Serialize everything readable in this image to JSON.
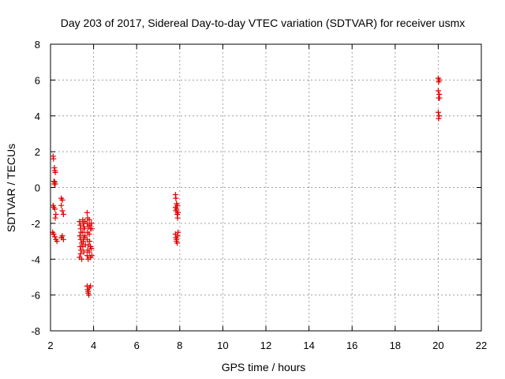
{
  "chart_data": {
    "type": "scatter",
    "title": "Day 203 of 2017, Sidereal Day-to-day VTEC variation (SDTVAR) for receiver usmx",
    "xlabel": "GPS time / hours",
    "ylabel": "SDTVAR / TECUs",
    "xlim": [
      2,
      22
    ],
    "ylim": [
      -8,
      8
    ],
    "xticks": [
      2,
      4,
      6,
      8,
      10,
      12,
      14,
      16,
      18,
      20,
      22
    ],
    "yticks": [
      -8,
      -6,
      -4,
      -2,
      0,
      2,
      4,
      6,
      8
    ],
    "grid": true,
    "marker": "plus",
    "color": "#e00000",
    "series": [
      {
        "name": "SDTVAR",
        "points": [
          [
            2.12,
            1.75
          ],
          [
            2.14,
            1.6
          ],
          [
            2.18,
            1.1
          ],
          [
            2.2,
            0.95
          ],
          [
            2.22,
            0.85
          ],
          [
            2.16,
            0.35
          ],
          [
            2.18,
            0.2
          ],
          [
            2.2,
            0.3
          ],
          [
            2.22,
            0.2
          ],
          [
            2.12,
            -1.0
          ],
          [
            2.15,
            -1.1
          ],
          [
            2.2,
            -1.2
          ],
          [
            2.25,
            -1.5
          ],
          [
            2.22,
            -1.7
          ],
          [
            2.1,
            -2.5
          ],
          [
            2.15,
            -2.6
          ],
          [
            2.2,
            -2.75
          ],
          [
            2.25,
            -2.9
          ],
          [
            2.3,
            -3.0
          ],
          [
            2.5,
            -0.6
          ],
          [
            2.55,
            -0.7
          ],
          [
            2.5,
            -1.0
          ],
          [
            2.55,
            -1.3
          ],
          [
            2.6,
            -1.5
          ],
          [
            2.5,
            -2.8
          ],
          [
            2.55,
            -2.7
          ],
          [
            2.6,
            -2.9
          ],
          [
            3.35,
            -1.9
          ],
          [
            3.38,
            -2.1
          ],
          [
            3.4,
            -2.3
          ],
          [
            3.42,
            -2.5
          ],
          [
            3.36,
            -2.7
          ],
          [
            3.4,
            -2.9
          ],
          [
            3.45,
            -3.1
          ],
          [
            3.38,
            -3.3
          ],
          [
            3.42,
            -3.5
          ],
          [
            3.4,
            -3.7
          ],
          [
            3.35,
            -3.9
          ],
          [
            3.45,
            -4.0
          ],
          [
            3.5,
            -1.8
          ],
          [
            3.52,
            -2.0
          ],
          [
            3.55,
            -2.2
          ],
          [
            3.5,
            -2.5
          ],
          [
            3.55,
            -2.8
          ],
          [
            3.52,
            -3.0
          ],
          [
            3.5,
            -3.3
          ],
          [
            3.55,
            -3.6
          ],
          [
            3.6,
            -1.9
          ],
          [
            3.58,
            -2.3
          ],
          [
            3.6,
            -2.7
          ],
          [
            3.62,
            -3.2
          ],
          [
            3.7,
            -1.4
          ],
          [
            3.72,
            -1.7
          ],
          [
            3.7,
            -2.0
          ],
          [
            3.75,
            -2.2
          ],
          [
            3.72,
            -2.5
          ],
          [
            3.7,
            -2.9
          ],
          [
            3.75,
            -3.2
          ],
          [
            3.72,
            -3.5
          ],
          [
            3.7,
            -3.8
          ],
          [
            3.75,
            -4.0
          ],
          [
            3.8,
            -1.8
          ],
          [
            3.82,
            -2.1
          ],
          [
            3.85,
            -2.3
          ],
          [
            3.8,
            -2.6
          ],
          [
            3.82,
            -3.0
          ],
          [
            3.85,
            -3.3
          ],
          [
            3.8,
            -3.6
          ],
          [
            3.85,
            -3.9
          ],
          [
            3.9,
            -2.0
          ],
          [
            3.92,
            -2.3
          ],
          [
            3.9,
            -3.4
          ],
          [
            3.92,
            -3.8
          ],
          [
            3.7,
            -5.5
          ],
          [
            3.72,
            -5.7
          ],
          [
            3.75,
            -5.9
          ],
          [
            3.78,
            -6.0
          ],
          [
            3.8,
            -5.6
          ],
          [
            3.85,
            -5.5
          ],
          [
            3.75,
            -5.8
          ],
          [
            7.8,
            -0.4
          ],
          [
            7.82,
            -0.6
          ],
          [
            7.85,
            -0.9
          ],
          [
            7.8,
            -1.1
          ],
          [
            7.82,
            -1.3
          ],
          [
            7.88,
            -1.5
          ],
          [
            7.9,
            -1.7
          ],
          [
            7.85,
            -1.2
          ],
          [
            7.9,
            -1.0
          ],
          [
            7.92,
            -1.4
          ],
          [
            7.8,
            -2.6
          ],
          [
            7.82,
            -2.8
          ],
          [
            7.85,
            -3.0
          ],
          [
            7.88,
            -3.1
          ],
          [
            7.9,
            -2.7
          ],
          [
            7.92,
            -2.5
          ],
          [
            7.85,
            -2.9
          ],
          [
            20.0,
            6.1
          ],
          [
            20.05,
            6.0
          ],
          [
            20.02,
            5.9
          ],
          [
            20.0,
            5.4
          ],
          [
            20.05,
            5.2
          ],
          [
            20.02,
            5.0
          ],
          [
            20.06,
            5.0
          ],
          [
            20.0,
            4.2
          ],
          [
            20.04,
            4.0
          ],
          [
            20.02,
            3.85
          ]
        ]
      }
    ]
  }
}
